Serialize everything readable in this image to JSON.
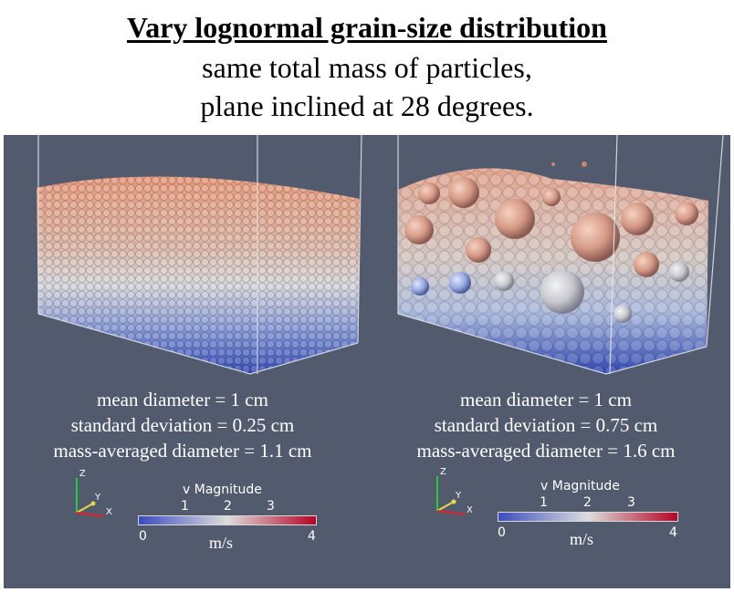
{
  "title": {
    "line1": "Vary lognormal grain-size distribution",
    "line2": "same total mass of particles,",
    "line3": "plane inclined at 28 degrees."
  },
  "panels": [
    {
      "stats": [
        "mean diameter = 1 cm",
        "standard deviation = 0.25 cm",
        "mass-averaged diameter = 1.1 cm"
      ],
      "colorbar": {
        "title": "v Magnitude",
        "ticks": [
          "1",
          "2",
          "3"
        ],
        "min": "0",
        "max": "4",
        "unit": "m/s"
      },
      "axes": {
        "z": "Z",
        "y": "Y",
        "x": "X"
      }
    },
    {
      "stats": [
        "mean diameter = 1 cm",
        "standard deviation = 0.75 cm",
        "mass-averaged diameter = 1.6 cm"
      ],
      "colorbar": {
        "title": "v Magnitude",
        "ticks": [
          "1",
          "2",
          "3"
        ],
        "min": "0",
        "max": "4",
        "unit": "m/s"
      },
      "axes": {
        "z": "Z",
        "y": "Y",
        "x": "X"
      }
    }
  ],
  "colors": {
    "background": "#525a6e",
    "low": "#3b4cc0",
    "mid": "#dddddd",
    "high": "#b40426"
  }
}
